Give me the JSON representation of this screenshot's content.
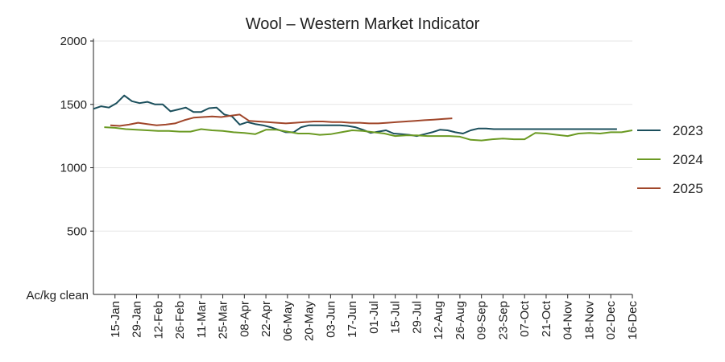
{
  "chart_data": {
    "type": "line",
    "title": "Wool – Western Market Indicator",
    "ylabel": "Ac/kg clean",
    "xlabel": "",
    "ylim": [
      0,
      2000
    ],
    "yticks": [
      500,
      1000,
      1500,
      2000
    ],
    "grid": "horizontal",
    "legend": "right",
    "x_tick_labels": [
      "15-Jan",
      "29-Jan",
      "12-Feb",
      "26-Feb",
      "11-Mar",
      "25-Mar",
      "08-Apr",
      "22-Apr",
      "06-May",
      "20-May",
      "03-Jun",
      "17-Jun",
      "01-Jul",
      "15-Jul",
      "29-Jul",
      "12-Aug",
      "26-Aug",
      "09-Sep",
      "23-Sep",
      "07-Oct",
      "21-Oct",
      "04-Nov",
      "18-Nov",
      "02-Dec",
      "16-Dec"
    ],
    "x_tick_days": [
      15,
      29,
      43,
      57,
      71,
      85,
      99,
      113,
      127,
      141,
      155,
      169,
      183,
      197,
      211,
      225,
      239,
      253,
      267,
      281,
      295,
      309,
      323,
      337,
      351
    ],
    "x_range_days": [
      1,
      351
    ],
    "series": [
      {
        "name": "2023",
        "color": "#1b4f5c",
        "x_days": [
          1,
          6,
          11,
          16,
          21,
          26,
          31,
          36,
          41,
          46,
          51,
          56,
          61,
          66,
          71,
          76,
          81,
          86,
          91,
          96,
          101,
          106,
          111,
          116,
          121,
          126,
          131,
          136,
          141,
          146,
          151,
          156,
          161,
          166,
          171,
          176,
          181,
          186,
          191,
          196,
          201,
          206,
          211,
          216,
          221,
          226,
          231,
          236,
          241,
          246,
          251,
          256,
          261,
          266,
          271,
          276,
          281,
          286,
          291,
          296,
          301,
          306,
          311,
          316,
          321,
          326,
          331,
          336,
          341
        ],
        "values": [
          1465,
          1485,
          1475,
          1510,
          1570,
          1525,
          1510,
          1520,
          1500,
          1500,
          1445,
          1460,
          1475,
          1440,
          1440,
          1470,
          1475,
          1420,
          1405,
          1340,
          1360,
          1345,
          1335,
          1320,
          1300,
          1280,
          1280,
          1320,
          1335,
          1335,
          1335,
          1335,
          1335,
          1330,
          1320,
          1300,
          1275,
          1285,
          1295,
          1270,
          1265,
          1260,
          1250,
          1265,
          1280,
          1300,
          1295,
          1280,
          1270,
          1295,
          1310,
          1310,
          1305,
          1305,
          1305,
          1305,
          1305,
          1305,
          1305,
          1305,
          1305,
          1305,
          1305,
          1305,
          1305,
          1305,
          1305,
          1305,
          1305
        ]
      },
      {
        "name": "2024",
        "color": "#6b9a23",
        "x_days": [
          8,
          15,
          22,
          29,
          36,
          43,
          50,
          57,
          64,
          71,
          78,
          85,
          92,
          99,
          106,
          113,
          120,
          127,
          134,
          141,
          148,
          155,
          162,
          169,
          176,
          183,
          190,
          197,
          204,
          211,
          218,
          225,
          232,
          239,
          246,
          253,
          260,
          267,
          274,
          281,
          288,
          295,
          302,
          309,
          316,
          323,
          330,
          337,
          344,
          351
        ],
        "values": [
          1320,
          1315,
          1305,
          1300,
          1295,
          1290,
          1290,
          1285,
          1285,
          1305,
          1295,
          1290,
          1280,
          1275,
          1265,
          1300,
          1300,
          1285,
          1270,
          1270,
          1260,
          1265,
          1280,
          1295,
          1290,
          1280,
          1270,
          1250,
          1255,
          1255,
          1250,
          1250,
          1250,
          1245,
          1220,
          1215,
          1225,
          1230,
          1225,
          1225,
          1275,
          1270,
          1260,
          1250,
          1270,
          1275,
          1270,
          1280,
          1280,
          1295
        ]
      },
      {
        "name": "2025",
        "color": "#a0462a",
        "x_days": [
          12,
          18,
          24,
          30,
          36,
          42,
          48,
          54,
          60,
          66,
          72,
          78,
          84,
          90,
          96,
          102,
          108,
          114,
          120,
          126,
          132,
          138,
          144,
          150,
          156,
          162,
          168,
          174,
          180,
          186,
          192,
          198,
          204,
          210,
          216,
          222,
          228,
          234
        ],
        "values": [
          1335,
          1330,
          1340,
          1355,
          1345,
          1335,
          1340,
          1350,
          1375,
          1395,
          1400,
          1405,
          1400,
          1410,
          1420,
          1370,
          1365,
          1360,
          1355,
          1350,
          1355,
          1360,
          1365,
          1365,
          1360,
          1360,
          1355,
          1355,
          1350,
          1350,
          1355,
          1360,
          1365,
          1370,
          1375,
          1380,
          1385,
          1390
        ]
      }
    ]
  }
}
